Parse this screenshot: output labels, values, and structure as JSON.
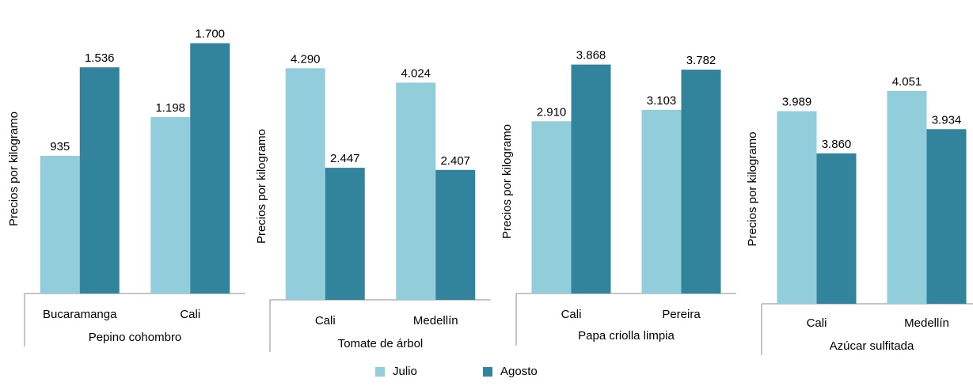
{
  "colors": {
    "julio": "#92cddc",
    "agosto": "#31849b"
  },
  "ylabel": "Precios por kilogramo",
  "legend": {
    "julio": "Julio",
    "agosto": "Agosto"
  },
  "chart_data": [
    {
      "type": "bar",
      "group_label": "Pepino cohombro",
      "categories": [
        "Bucaramanga",
        "Cali"
      ],
      "ylabel": "Precios por kilogramo",
      "ylim": [
        0,
        1800
      ],
      "series": [
        {
          "name": "Julio",
          "values": [
            935,
            1198
          ],
          "labels": [
            "935",
            "1.198"
          ]
        },
        {
          "name": "Agosto",
          "values": [
            1536,
            1700
          ],
          "labels": [
            "1.536",
            "1.700"
          ]
        }
      ]
    },
    {
      "type": "bar",
      "group_label": "Tomate de árbol",
      "categories": [
        "Cali",
        "Medellín"
      ],
      "ylabel": "Precios por kilogramo",
      "ylim": [
        0,
        4500
      ],
      "series": [
        {
          "name": "Julio",
          "values": [
            4290,
            4024
          ],
          "labels": [
            "4.290",
            "4.024"
          ]
        },
        {
          "name": "Agosto",
          "values": [
            2447,
            2407
          ],
          "labels": [
            "2.447",
            "2.407"
          ]
        }
      ]
    },
    {
      "type": "bar",
      "group_label": "Papa criolla limpia",
      "categories": [
        "Cali",
        "Pereira"
      ],
      "ylabel": "Precios por kilogramo",
      "ylim": [
        0,
        4050
      ],
      "series": [
        {
          "name": "Julio",
          "values": [
            2910,
            3103
          ],
          "labels": [
            "2.910",
            "3.103"
          ]
        },
        {
          "name": "Agosto",
          "values": [
            3868,
            3782
          ],
          "labels": [
            "3.868",
            "3.782"
          ]
        }
      ]
    },
    {
      "type": "bar",
      "group_label": "Azúcar sulfitada",
      "categories": [
        "Cali",
        "Medellín"
      ],
      "ylabel": "Precios por kilogramo",
      "ylim": [
        3400,
        4150
      ],
      "series": [
        {
          "name": "Julio",
          "values": [
            3989,
            4051
          ],
          "labels": [
            "3.989",
            "4.051"
          ]
        },
        {
          "name": "Agosto",
          "values": [
            3860,
            3934
          ],
          "labels": [
            "3.860",
            "3.934"
          ]
        }
      ]
    }
  ]
}
